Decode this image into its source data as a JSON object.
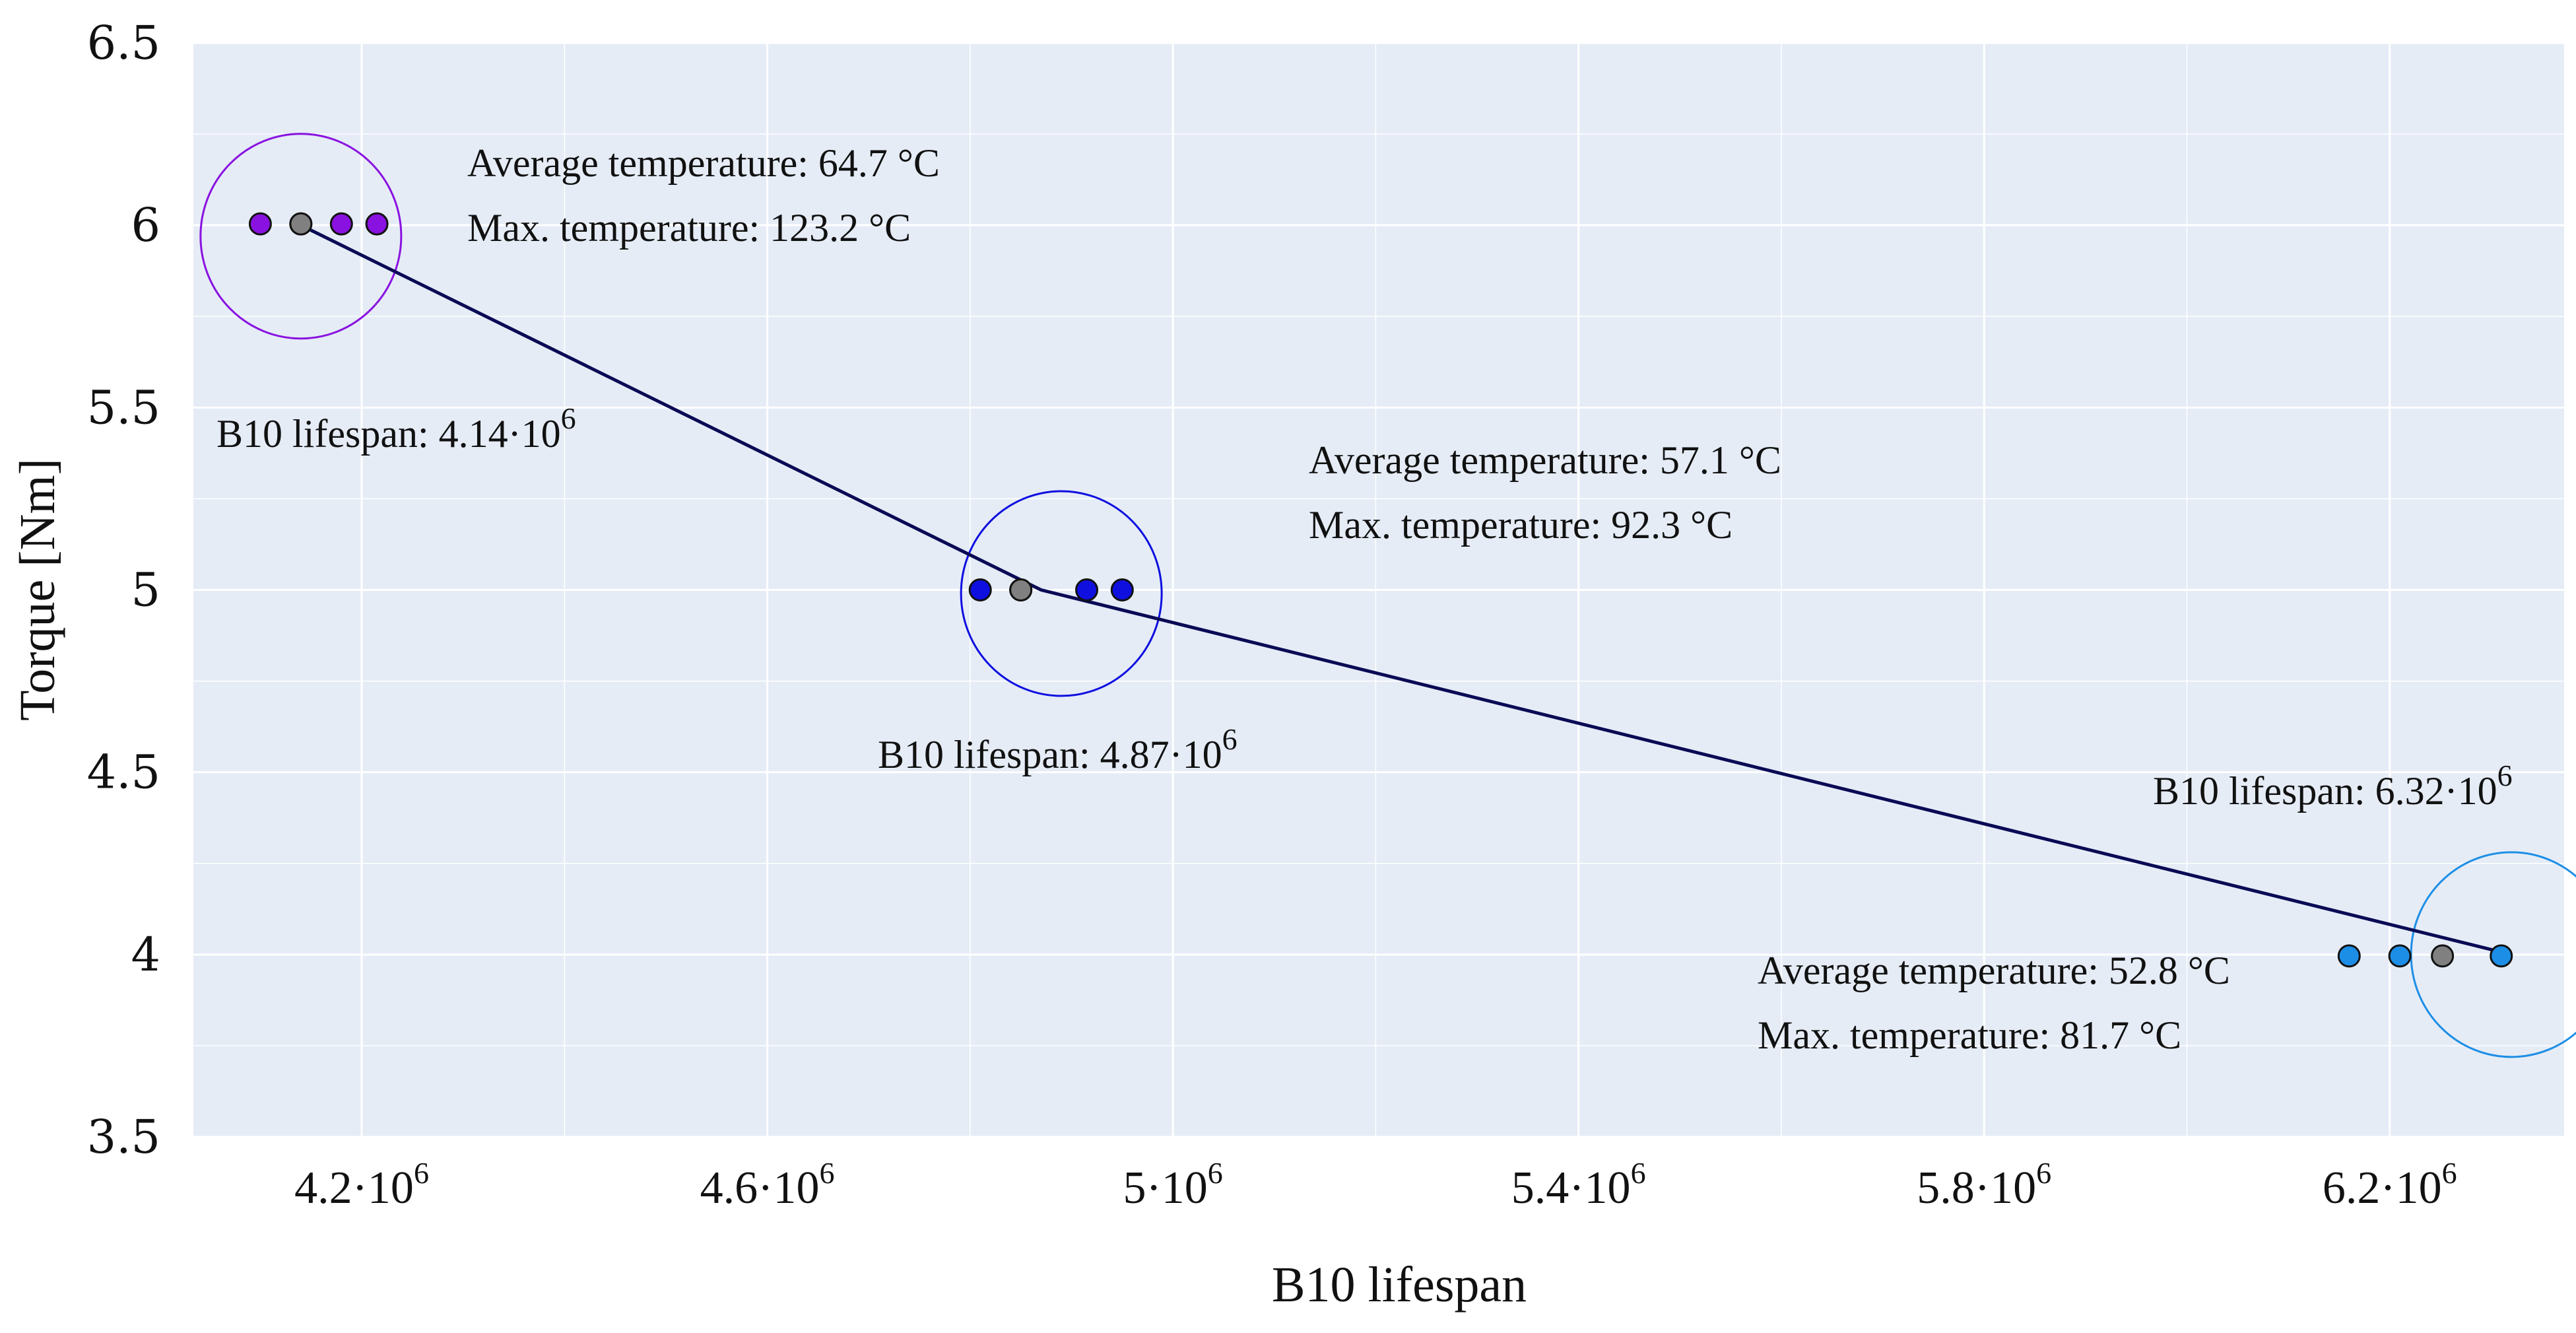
{
  "chart_data": {
    "type": "scatter",
    "xlabel": "B10 lifespan",
    "ylabel": "Torque [Nm]",
    "xlim": [
      4034000,
      6372000
    ],
    "ylim": [
      3.5,
      6.5
    ],
    "x_ticks": [
      {
        "value": 4200000,
        "mantissa": "4.2",
        "exp": "6"
      },
      {
        "value": 4600000,
        "mantissa": "4.6",
        "exp": "6"
      },
      {
        "value": 5000000,
        "mantissa": "5",
        "exp": "6"
      },
      {
        "value": 5400000,
        "mantissa": "5.4",
        "exp": "6"
      },
      {
        "value": 5800000,
        "mantissa": "5.8",
        "exp": "6"
      },
      {
        "value": 6200000,
        "mantissa": "6.2",
        "exp": "6"
      }
    ],
    "x_minor_grid": [
      4400000,
      4800000,
      5200000,
      5600000,
      6000000
    ],
    "y_ticks": [
      "3.5",
      "4",
      "4.5",
      "5",
      "5.5",
      "6",
      "6.5"
    ],
    "y_minor_grid": [
      3.75,
      4.25,
      4.75,
      5.25,
      5.75,
      6.25
    ],
    "line": [
      [
        4140000,
        6
      ],
      [
        4870000,
        5
      ],
      [
        6320000,
        4
      ]
    ],
    "groups": [
      {
        "torque": 6,
        "color": "#8a12e0",
        "b10_center": 4140000,
        "circle_center_x": 4140000,
        "circle_center_y": 5.97,
        "points": [
          4100000,
          4140000,
          4180000,
          4215000
        ],
        "center_point": 4140000,
        "b10_label": {
          "text": "B10 lifespan: 4.14·10",
          "exp": "6"
        },
        "avg_temp": "Average temperature: 64.7 °C",
        "max_temp": "Max. temperature: 123.2 °C"
      },
      {
        "torque": 5,
        "color": "#0f0fe0",
        "b10_center": 4870000,
        "circle_center_x": 4890000,
        "circle_center_y": 4.99,
        "points": [
          4810000,
          4850000,
          4915000,
          4950000
        ],
        "center_point": 4850000,
        "b10_label": {
          "text": "B10 lifespan: 4.87·10",
          "exp": "6"
        },
        "avg_temp": "Average temperature: 57.1 °C",
        "max_temp": "Max. temperature: 92.3 °C"
      },
      {
        "torque": 4,
        "color": "#1d8ee6",
        "b10_center": 6320000,
        "circle_center_x": 6320000,
        "circle_center_y": 4.0,
        "points": [
          6160000,
          6210000,
          6310000
        ],
        "center_point": 6252000,
        "b10_label": {
          "text": "B10 lifespan: 6.32·10",
          "exp": "6"
        },
        "avg_temp": "Average temperature: 52.8 °C",
        "max_temp": "Max. temperature: 81.7 °C"
      }
    ],
    "colors": {
      "plot_bg": "#e5ecf6",
      "grid": "#ffffff",
      "line": "#0a0a55",
      "center_point": "#808080"
    }
  }
}
